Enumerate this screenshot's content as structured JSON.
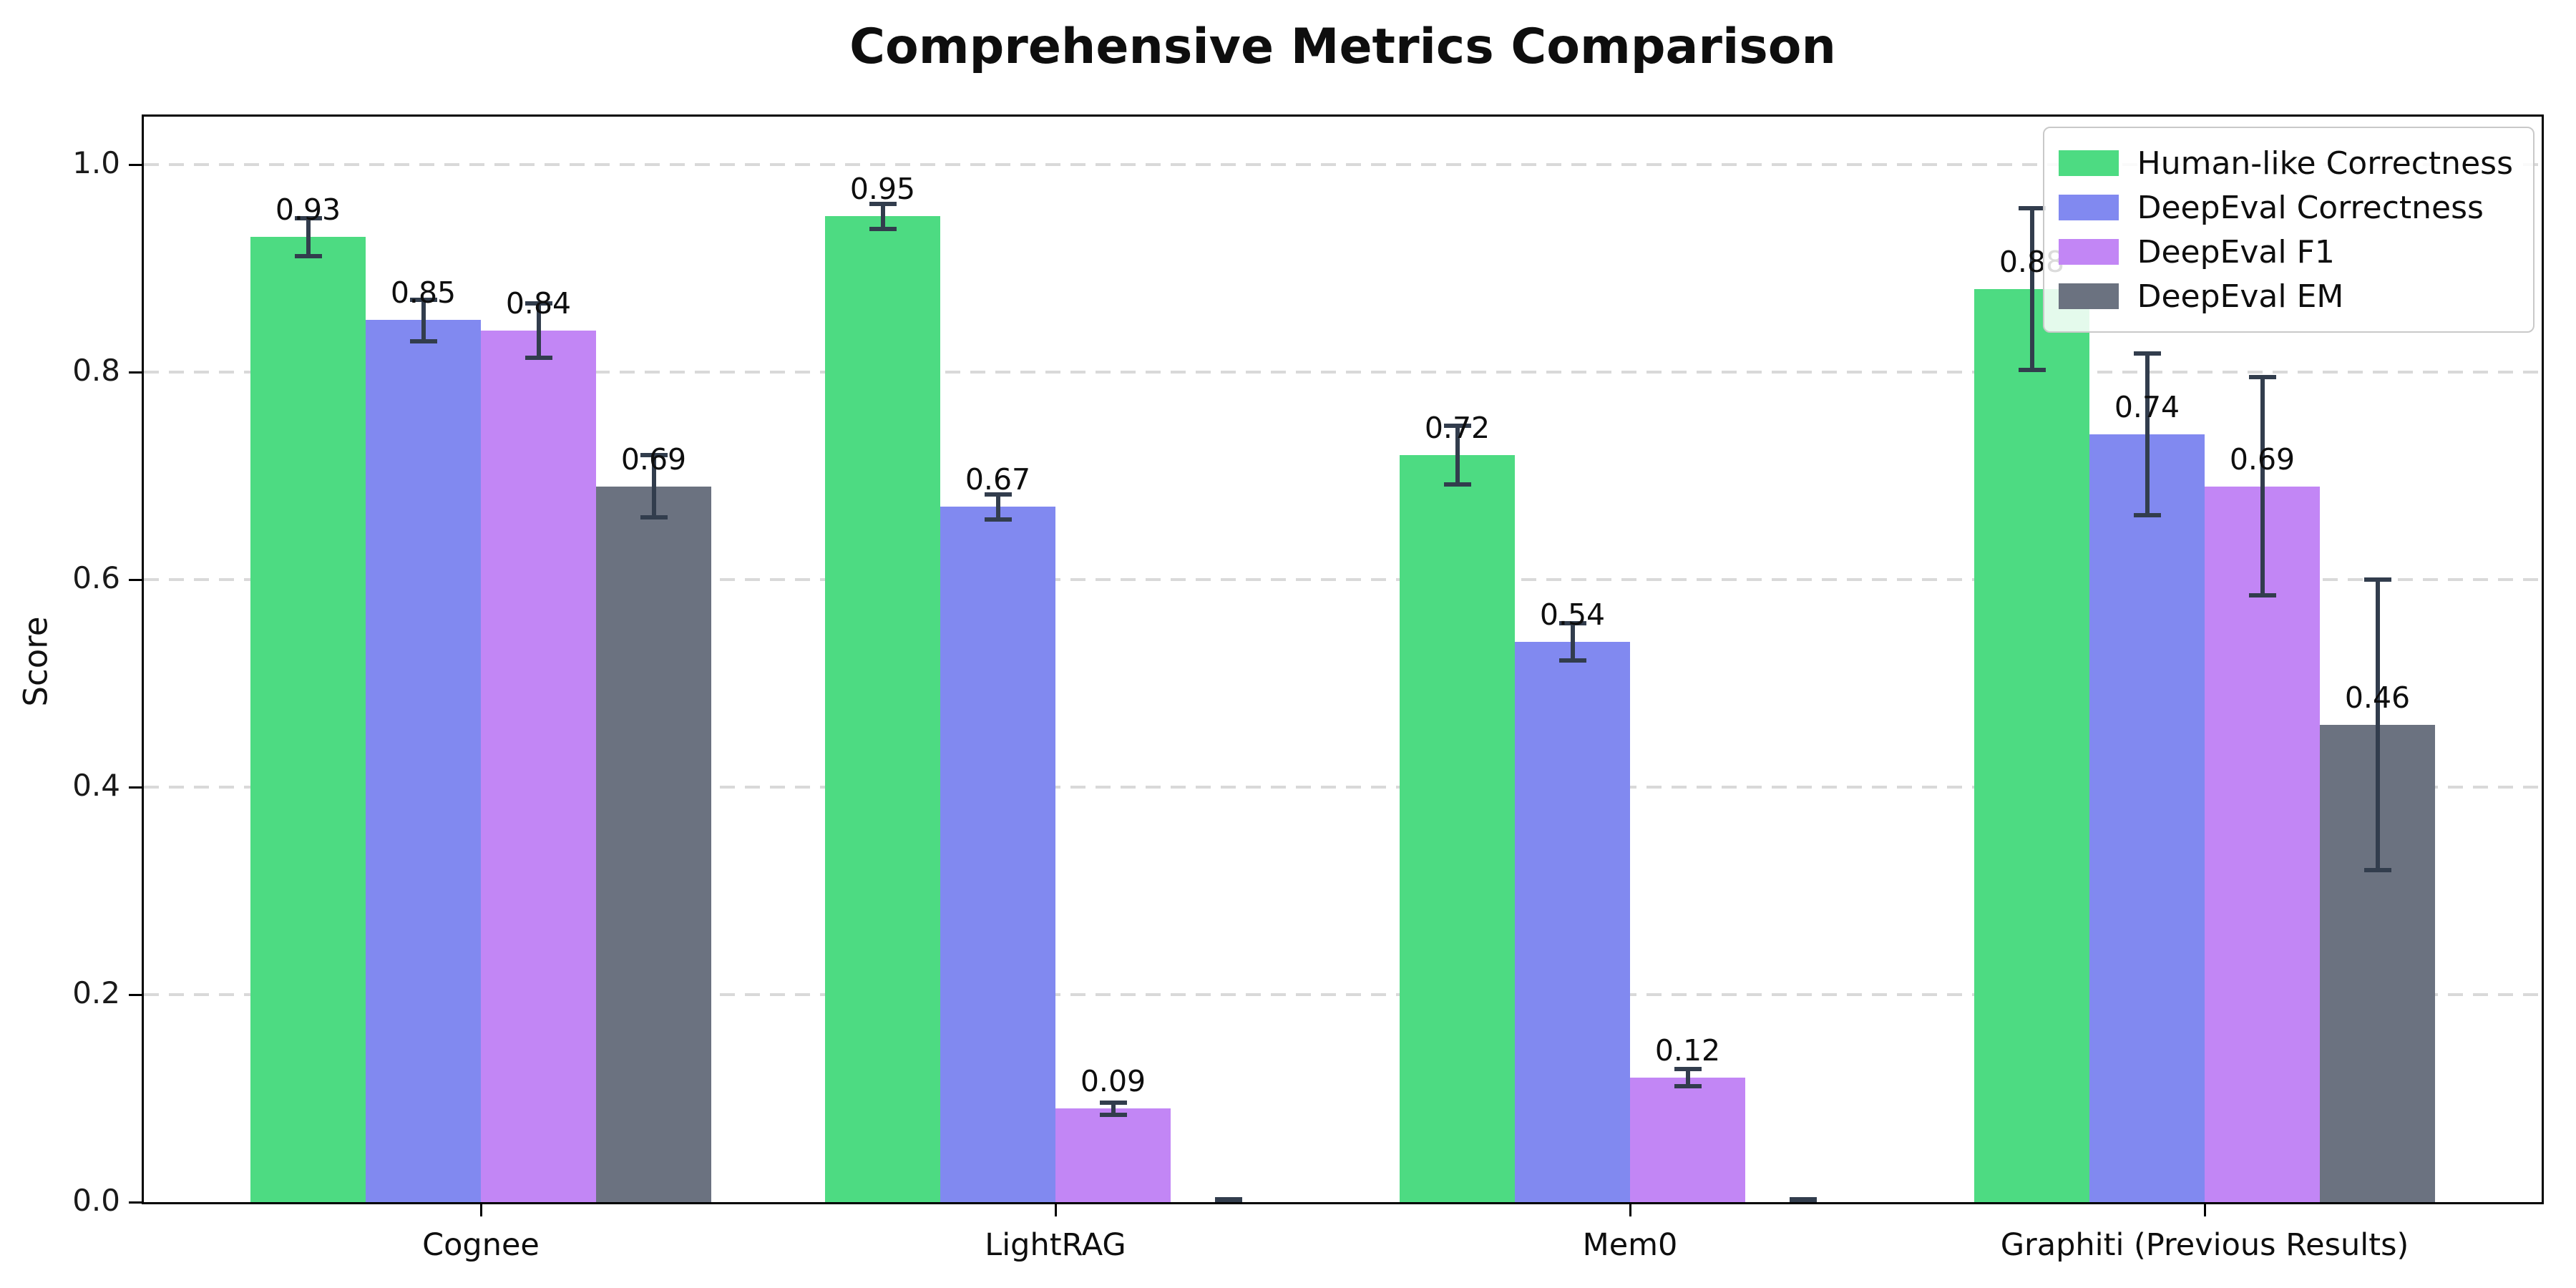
{
  "title": "Comprehensive Metrics Comparison",
  "chart_data": {
    "type": "bar",
    "title": "Comprehensive Metrics Comparison",
    "categories": [
      "Cognee",
      "LightRAG",
      "Mem0",
      "Graphiti (Previous Results)"
    ],
    "series": [
      {
        "name": "Human-like Correctness",
        "color": "#4ddb82",
        "values": [
          0.93,
          0.95,
          0.72,
          0.88
        ],
        "errors": [
          0.018,
          0.012,
          0.028,
          0.078
        ],
        "labels": [
          "0.93",
          "0.95",
          "0.72",
          "0.88"
        ]
      },
      {
        "name": "DeepEval Correctness",
        "color": "#8189f0",
        "values": [
          0.85,
          0.67,
          0.54,
          0.74
        ],
        "errors": [
          0.02,
          0.012,
          0.018,
          0.078
        ],
        "labels": [
          "0.85",
          "0.67",
          "0.54",
          "0.74"
        ]
      },
      {
        "name": "DeepEval F1",
        "color": "#c286f5",
        "values": [
          0.84,
          0.09,
          0.12,
          0.69
        ],
        "errors": [
          0.026,
          0.006,
          0.008,
          0.105
        ],
        "labels": [
          "0.84",
          "0.09",
          "0.12",
          "0.69"
        ]
      },
      {
        "name": "DeepEval EM",
        "color": "#6b7280",
        "values": [
          0.69,
          0.0,
          0.0,
          0.46
        ],
        "errors": [
          0.03,
          0.003,
          0.003,
          0.14
        ],
        "labels": [
          "0.69",
          "",
          "",
          "0.46"
        ]
      }
    ],
    "xlabel": "",
    "ylabel": "Score",
    "ylim": [
      0.0,
      1.048
    ],
    "yticks": [
      0.0,
      0.2,
      0.4,
      0.6,
      0.8,
      1.0
    ],
    "ytick_labels": [
      "0.0",
      "0.2",
      "0.4",
      "0.6",
      "0.8",
      "1.0"
    ],
    "grid": "horizontal-dashed",
    "legend_position": "upper right",
    "error_bar_color": "#323d4d"
  }
}
